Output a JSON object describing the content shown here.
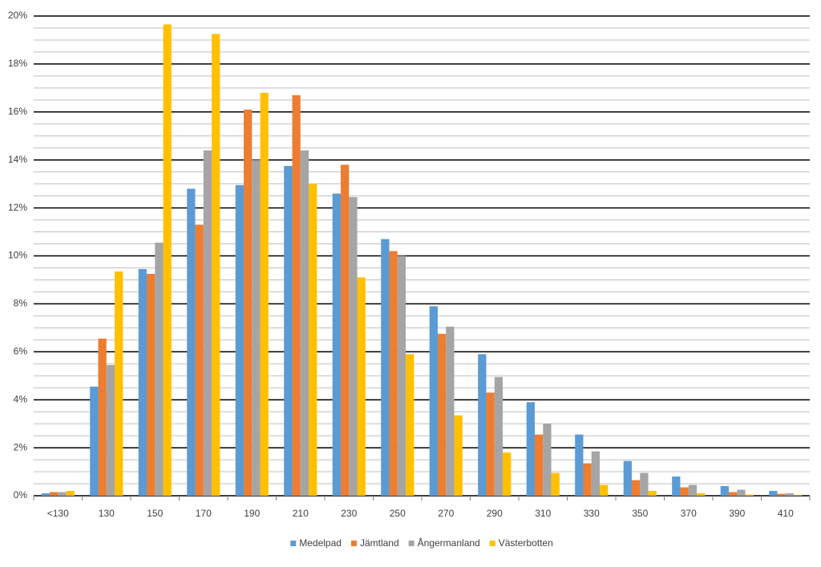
{
  "chart_data": {
    "type": "bar",
    "categories": [
      "<130",
      "130",
      "150",
      "170",
      "190",
      "210",
      "230",
      "250",
      "270",
      "290",
      "310",
      "330",
      "350",
      "370",
      "390",
      "410"
    ],
    "series": [
      {
        "name": "Medelpad",
        "color": "#5b9bd5",
        "values": [
          0.1,
          4.55,
          9.45,
          12.8,
          12.95,
          13.75,
          12.6,
          10.7,
          7.9,
          5.9,
          3.9,
          2.55,
          1.45,
          0.8,
          0.4,
          0.2
        ]
      },
      {
        "name": "Jämtland",
        "color": "#ed7d31",
        "values": [
          0.15,
          6.55,
          9.25,
          11.3,
          16.1,
          16.7,
          13.8,
          10.2,
          6.75,
          4.3,
          2.55,
          1.35,
          0.65,
          0.35,
          0.15,
          0.08
        ]
      },
      {
        "name": "Ångermanland",
        "color": "#a5a5a5",
        "values": [
          0.15,
          5.45,
          10.55,
          14.4,
          14.0,
          14.4,
          12.45,
          10.0,
          7.05,
          4.95,
          3.0,
          1.85,
          0.95,
          0.45,
          0.25,
          0.1
        ]
      },
      {
        "name": "Västerbotten",
        "color": "#ffc000",
        "values": [
          0.2,
          9.35,
          19.65,
          19.25,
          16.8,
          13.0,
          9.1,
          5.9,
          3.35,
          1.8,
          0.95,
          0.45,
          0.2,
          0.1,
          0.05,
          0.02
        ]
      }
    ],
    "ylim": [
      0,
      20
    ],
    "yticks": [
      {
        "value": 0,
        "label": "0%"
      },
      {
        "value": 2,
        "label": "2%"
      },
      {
        "value": 4,
        "label": "4%"
      },
      {
        "value": 6,
        "label": "6%"
      },
      {
        "value": 8,
        "label": "8%"
      },
      {
        "value": 10,
        "label": "10%"
      },
      {
        "value": 12,
        "label": "12%"
      },
      {
        "value": 14,
        "label": "14%"
      },
      {
        "value": 16,
        "label": "16%"
      },
      {
        "value": 18,
        "label": "18%"
      },
      {
        "value": 20,
        "label": "20%"
      }
    ],
    "grid": true,
    "minor_grid_step": 0.5,
    "legend": "bottom"
  }
}
